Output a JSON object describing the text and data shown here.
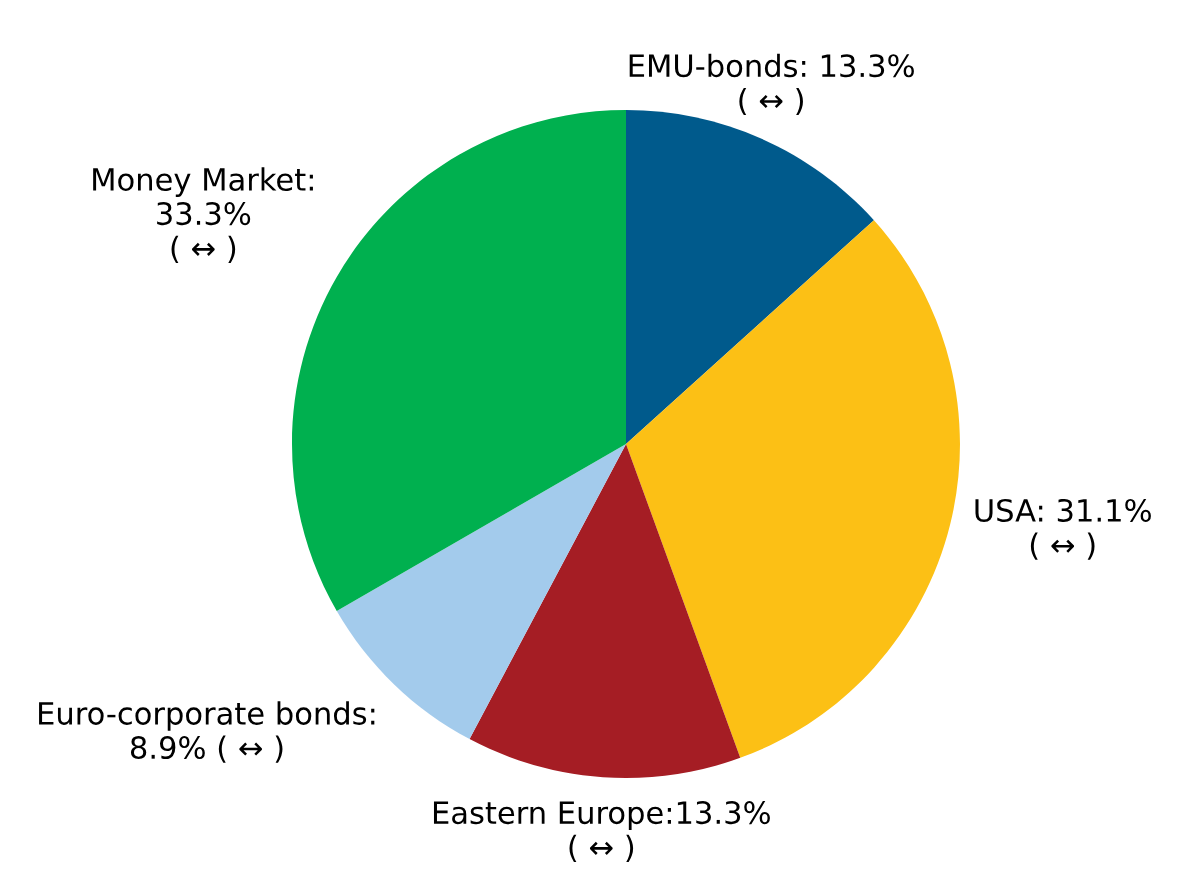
{
  "chart_data": {
    "type": "pie",
    "categories": [
      "EMU-bonds: 13.3%\n( ↔ )",
      "USA: 31.1%\n( ↔ )",
      "Eastern Europe:13.3%\n( ↔ )",
      "Euro-corporate bonds:\n8.9% ( ↔ )",
      "Money Market:\n33.3%\n( ↔ )"
    ],
    "values": [
      13.3,
      31.1,
      13.3,
      8.9,
      33.3
    ],
    "colors": [
      "#005a8c",
      "#fcc015",
      "#a51d24",
      "#a3cbec",
      "#00b04f"
    ]
  }
}
